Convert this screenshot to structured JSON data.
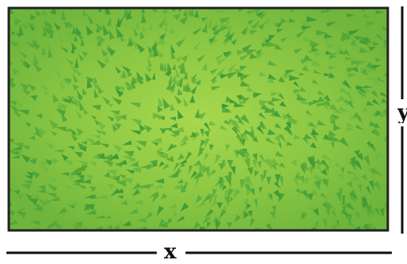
{
  "diagram": {
    "subject": "grass-field-rectangle",
    "width_label": "x",
    "height_label": "y"
  },
  "colors": {
    "field_base": "#7cbf3e",
    "field_center": "#a8d84e",
    "blade_dark": "#3f9a35",
    "blade_mid": "#5aaa3a",
    "border": "#222222",
    "dimension_line": "#111111"
  },
  "icons": {
    "field": "grass-texture-icon"
  }
}
